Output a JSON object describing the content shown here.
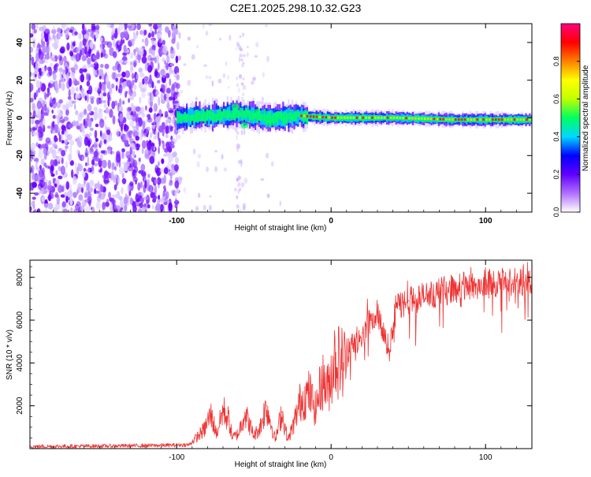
{
  "title": "C2E1.2025.298.10.32.G23",
  "chart_data": [
    {
      "type": "heatmap",
      "name": "spectrogram",
      "xlabel": "Height of straight line (km)",
      "ylabel": "Frequency (Hz)",
      "xlim": [
        -195,
        130
      ],
      "ylim": [
        -50,
        50
      ],
      "x_ticks": [
        -100,
        0,
        100
      ],
      "x_tick_labels": [
        "-100",
        "0",
        "100"
      ],
      "y_ticks": [
        -40,
        -20,
        0,
        20,
        40
      ],
      "y_tick_labels": [
        "-40",
        "-20",
        "0",
        "20",
        "40"
      ],
      "signal_trace": {
        "x": [
          -100,
          -80,
          -60,
          -40,
          -20,
          0,
          40,
          80,
          130
        ],
        "frequency": [
          0,
          1,
          2,
          0,
          1,
          0,
          0,
          -1,
          -1
        ]
      },
      "noise_region": [
        -195,
        -100
      ],
      "colorbar": {
        "label": "Normalized spectral amplitude",
        "range": [
          0.0,
          1.0
        ],
        "ticks": [
          0.0,
          0.2,
          0.4,
          0.6,
          0.8
        ],
        "tick_labels": [
          "0.0",
          "0.2",
          "0.4",
          "0.6",
          "0.8"
        ],
        "colors": [
          "#ffffff",
          "#b070ff",
          "#6000ff",
          "#0000ff",
          "#00d8ff",
          "#00ff60",
          "#c0ff00",
          "#ffff00",
          "#ff8000",
          "#ff0000",
          "#ff0080"
        ]
      }
    },
    {
      "type": "line",
      "name": "snr",
      "xlabel": "Height of straight line (km)",
      "ylabel": "SNR (10 * v/v)",
      "xlim": [
        -195,
        130
      ],
      "ylim": [
        0,
        8800
      ],
      "x_ticks": [
        -100,
        0,
        100
      ],
      "x_tick_labels": [
        "-100",
        "0",
        "100"
      ],
      "y_ticks": [
        2000,
        4000,
        6000,
        8000
      ],
      "y_tick_labels": [
        "2000",
        "4000",
        "6000",
        "8000"
      ],
      "color": "#ee3333",
      "series": [
        {
          "name": "SNR",
          "x": [
            -195,
            -150,
            -110,
            -92,
            -86,
            -82,
            -78,
            -74,
            -70,
            -66,
            -64,
            -60,
            -56,
            -50,
            -46,
            -42,
            -36,
            -32,
            -28,
            -24,
            -20,
            -14,
            -10,
            -6,
            -2,
            2,
            8,
            14,
            20,
            26,
            30,
            34,
            38,
            42,
            50,
            60,
            70,
            80,
            90,
            100,
            110,
            120,
            130
          ],
          "y": [
            100,
            120,
            150,
            180,
            600,
            900,
            1600,
            700,
            1800,
            1300,
            500,
            700,
            1700,
            600,
            1000,
            2000,
            400,
            1700,
            400,
            1200,
            2200,
            2600,
            1800,
            3200,
            2800,
            4200,
            4000,
            5000,
            5400,
            6000,
            6400,
            5600,
            4500,
            6600,
            6900,
            7100,
            7300,
            7500,
            7600,
            7700,
            7700,
            7800,
            7850
          ]
        }
      ]
    }
  ]
}
